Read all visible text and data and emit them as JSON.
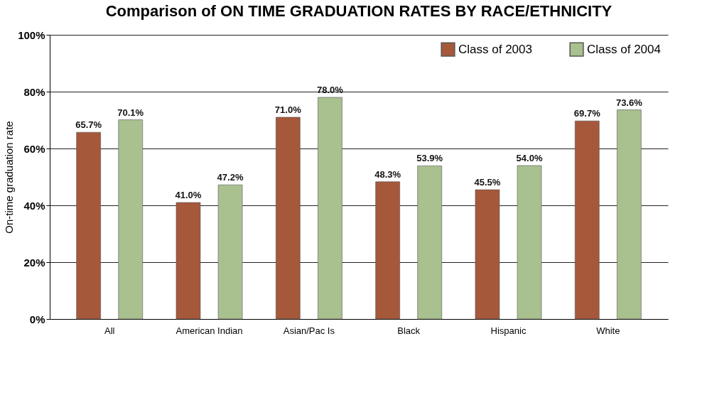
{
  "chart_data": {
    "type": "bar",
    "title": "Comparison of ON TIME GRADUATION RATES BY RACE/ETHNICITY",
    "ylabel": "On-time graduation rate",
    "categories": [
      "All",
      "American Indian",
      "Asian/Pac Is",
      "Black",
      "Hispanic",
      "White"
    ],
    "series": [
      {
        "name": "Class of 2003",
        "color": "#a6583a",
        "values": [
          65.7,
          41.0,
          71.0,
          48.3,
          45.5,
          69.7
        ],
        "value_labels": [
          "65.7%",
          "41.0%",
          "71.0%",
          "48.3%",
          "45.5%",
          "69.7%"
        ]
      },
      {
        "name": "Class of 2004",
        "color": "#a9c08f",
        "values": [
          70.1,
          47.2,
          78.0,
          53.9,
          54.0,
          73.6
        ],
        "value_labels": [
          "70.1%",
          "47.2%",
          "78.0%",
          "53.9%",
          "54.0%",
          "73.6%"
        ]
      }
    ],
    "ylim": [
      0,
      100
    ],
    "yticks": [
      {
        "value": 0,
        "label": "0%"
      },
      {
        "value": 20,
        "label": "20%"
      },
      {
        "value": 40,
        "label": "40%"
      },
      {
        "value": 60,
        "label": "60%"
      },
      {
        "value": 80,
        "label": "80%"
      },
      {
        "value": 100,
        "label": "100%"
      }
    ],
    "grid": "y",
    "legend": "top right"
  }
}
